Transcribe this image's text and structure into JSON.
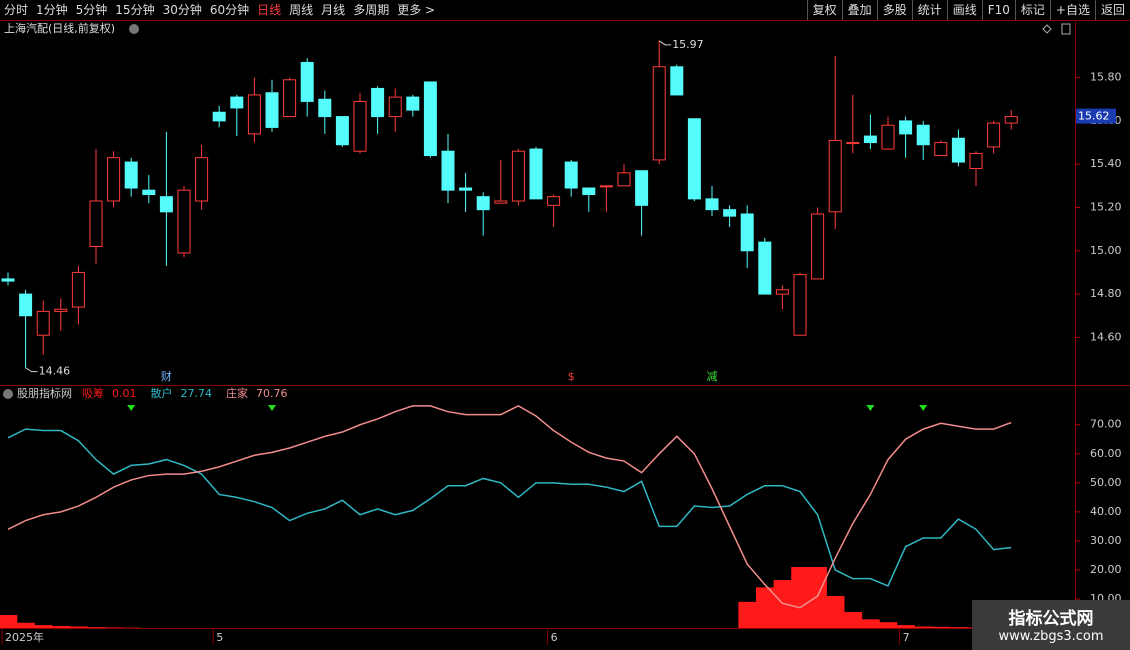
{
  "toolbar": {
    "left": [
      "分时",
      "1分钟",
      "5分钟",
      "15分钟",
      "30分钟",
      "60分钟",
      "日线",
      "周线",
      "月线",
      "多周期",
      "更多 >"
    ],
    "active_index": 6,
    "right": [
      "复权",
      "叠加",
      "多股",
      "统计",
      "画线",
      "F10",
      "标记",
      "+自选",
      "返回"
    ]
  },
  "chart_data": [
    {
      "type": "candlestick",
      "title": "上海汽配(日线,前复权)",
      "up_color": "#ff3c3c",
      "down_color": "#54fcfc",
      "open": [
        14.87,
        14.8,
        14.61,
        14.72,
        14.74,
        15.02,
        15.23,
        15.41,
        15.28,
        15.25,
        14.99,
        15.23,
        15.64,
        15.71,
        15.54,
        15.73,
        15.62,
        15.87,
        15.7,
        15.62,
        15.46,
        15.75,
        15.62,
        15.71,
        15.78,
        15.46,
        15.29,
        15.25,
        15.22,
        15.23,
        15.47,
        15.21,
        15.41,
        15.29,
        15.3,
        15.3,
        15.37,
        15.42,
        15.85,
        15.61,
        15.24,
        15.19,
        15.17,
        15.04,
        14.8,
        14.61,
        14.87,
        15.18,
        15.5,
        15.53,
        15.47,
        15.6,
        15.58,
        15.44,
        15.52,
        15.38,
        15.48,
        15.59
      ],
      "high": [
        14.9,
        14.82,
        14.77,
        14.78,
        14.93,
        15.47,
        15.46,
        15.43,
        15.35,
        15.55,
        15.3,
        15.49,
        15.67,
        15.72,
        15.8,
        15.79,
        15.8,
        15.89,
        15.74,
        15.62,
        15.73,
        15.76,
        15.75,
        15.72,
        15.78,
        15.54,
        15.36,
        15.27,
        15.42,
        15.47,
        15.48,
        15.26,
        15.42,
        15.29,
        15.3,
        15.4,
        15.37,
        15.97,
        15.86,
        15.61,
        15.3,
        15.21,
        15.21,
        15.06,
        14.84,
        14.9,
        15.2,
        15.9,
        15.72,
        15.63,
        15.62,
        15.62,
        15.6,
        15.51,
        15.56,
        15.46,
        15.6,
        15.65
      ],
      "low": [
        14.84,
        14.46,
        14.52,
        14.63,
        14.66,
        14.94,
        15.2,
        15.25,
        15.22,
        14.93,
        14.97,
        15.19,
        15.57,
        15.53,
        15.5,
        15.55,
        15.62,
        15.62,
        15.54,
        15.48,
        15.45,
        15.54,
        15.55,
        15.62,
        15.43,
        15.22,
        15.18,
        15.07,
        15.22,
        15.21,
        15.24,
        15.11,
        15.25,
        15.18,
        15.18,
        15.3,
        15.07,
        15.4,
        15.72,
        15.23,
        15.16,
        15.11,
        14.92,
        14.8,
        14.73,
        14.61,
        14.87,
        15.1,
        15.45,
        15.47,
        15.47,
        15.43,
        15.42,
        15.44,
        15.39,
        15.3,
        15.45,
        15.56
      ],
      "close": [
        14.86,
        14.7,
        14.72,
        14.73,
        14.9,
        15.23,
        15.43,
        15.29,
        15.26,
        15.18,
        15.28,
        15.43,
        15.6,
        15.66,
        15.72,
        15.57,
        15.79,
        15.69,
        15.62,
        15.49,
        15.69,
        15.62,
        15.71,
        15.65,
        15.44,
        15.28,
        15.28,
        15.19,
        15.23,
        15.46,
        15.24,
        15.25,
        15.29,
        15.26,
        15.3,
        15.36,
        15.21,
        15.85,
        15.72,
        15.24,
        15.19,
        15.16,
        15.0,
        14.8,
        14.82,
        14.89,
        15.17,
        15.51,
        15.5,
        15.5,
        15.58,
        15.54,
        15.49,
        15.5,
        15.41,
        15.45,
        15.59,
        15.62
      ],
      "ylim": [
        14.38,
        16.02
      ],
      "yticks": [
        {
          "value": 15.8,
          "label": "15.80"
        },
        {
          "value": 15.6,
          "label": "15.60"
        },
        {
          "value": 15.4,
          "label": "15.40"
        },
        {
          "value": 15.2,
          "label": "15.20"
        },
        {
          "value": 15.0,
          "label": "15.00"
        },
        {
          "value": 14.8,
          "label": "14.80"
        },
        {
          "value": 14.6,
          "label": "14.60"
        }
      ],
      "events": [
        {
          "index": 9,
          "label": "财",
          "color": "#6fb4ff"
        },
        {
          "index": 32,
          "label": "$",
          "color": "#ff3c3c"
        },
        {
          "index": 40,
          "label": "减",
          "color": "#3ce03c"
        }
      ]
    },
    {
      "type": "combo",
      "title": "股朋指标网",
      "categories": [
        "2025年",
        null,
        null,
        null,
        null,
        null,
        null,
        null,
        null,
        null,
        null,
        null,
        "5",
        null,
        null,
        null,
        null,
        null,
        null,
        null,
        null,
        null,
        null,
        null,
        null,
        null,
        null,
        null,
        null,
        null,
        null,
        "6",
        null,
        null,
        null,
        null,
        null,
        null,
        null,
        null,
        null,
        null,
        null,
        null,
        null,
        null,
        null,
        null,
        null,
        null,
        null,
        "7",
        null,
        null,
        null,
        null,
        null,
        null
      ],
      "series": [
        {
          "name": "吸筹",
          "kind": "bar",
          "color": "#ff1a1a",
          "values": [
            4.5,
            1.8,
            1,
            0.7,
            0.5,
            0.3,
            0.2,
            0.1,
            0,
            0,
            0,
            0,
            0,
            0,
            0,
            0,
            0,
            0,
            0,
            0,
            0,
            0,
            0,
            0,
            0,
            0,
            0,
            0,
            0,
            0,
            0,
            0,
            0,
            0,
            0,
            0,
            0,
            0,
            0,
            0,
            0,
            0,
            9,
            14,
            16.5,
            21,
            21,
            11,
            5.5,
            3,
            2,
            1,
            0.5,
            0.4,
            0.3,
            0.2,
            0.1,
            0.01
          ]
        },
        {
          "name": "散户",
          "kind": "line",
          "color": "#2fb8c4",
          "values": [
            65.5,
            68.5,
            68,
            68,
            64.5,
            58,
            53,
            56,
            56.5,
            58,
            56,
            53,
            46,
            45,
            43.5,
            41.5,
            37,
            39.5,
            41,
            44,
            39,
            41,
            39,
            40.5,
            44.5,
            49,
            49,
            51.5,
            50,
            45,
            50,
            50,
            49.5,
            49.5,
            48.5,
            47,
            50.5,
            35,
            35,
            42,
            41.5,
            42,
            46,
            49,
            49,
            47,
            39,
            20,
            17,
            17,
            14.5,
            28,
            31,
            31,
            37.5,
            34,
            27,
            27.74
          ]
        },
        {
          "name": "庄家",
          "kind": "line",
          "color": "#f28c8c",
          "values": [
            34,
            37,
            39,
            40,
            42,
            45,
            48.5,
            51,
            52.5,
            53,
            53,
            54,
            55.5,
            57.5,
            59.5,
            60.5,
            62,
            64,
            66,
            67.5,
            70,
            72,
            74.5,
            76.5,
            76.5,
            74.5,
            73.5,
            73.5,
            73.5,
            76.5,
            73,
            68,
            64,
            60.5,
            58.5,
            57.5,
            53.5,
            60,
            66,
            60,
            48,
            35,
            22,
            15,
            8.5,
            7,
            11,
            24,
            36,
            46,
            58,
            65,
            68.5,
            70.5,
            69.5,
            68.5,
            68.5,
            70.76
          ]
        }
      ],
      "ylim": [
        0,
        83
      ],
      "yticks": [
        {
          "value": 70,
          "label": "70.00"
        },
        {
          "value": 60,
          "label": "60.00"
        },
        {
          "value": 50,
          "label": "50.00"
        },
        {
          "value": 40,
          "label": "40.00"
        },
        {
          "value": 30,
          "label": "30.00"
        },
        {
          "value": 20,
          "label": "20.00"
        },
        {
          "value": 10,
          "label": "10.00"
        }
      ],
      "signals": [
        7,
        15,
        49,
        52
      ],
      "signal_color": "#22dd22"
    }
  ],
  "watermark": {
    "title": "指标公式网",
    "url": "www.zbgs3.com"
  }
}
